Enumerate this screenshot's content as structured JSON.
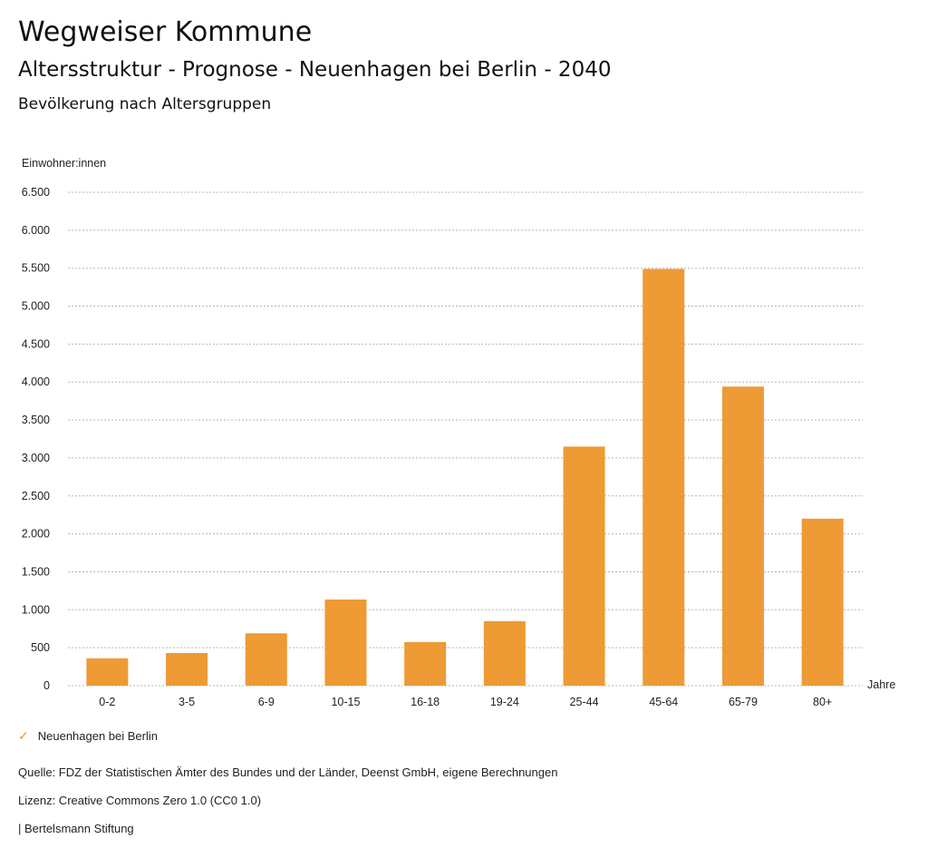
{
  "header": {
    "title": "Wegweiser Kommune",
    "subtitle": "Altersstruktur - Prognose - Neuenhagen bei Berlin - 2040",
    "heading": "Bevölkerung nach Altersgruppen"
  },
  "chart_data": {
    "type": "bar",
    "ylabel": "Einwohner:innen",
    "xlabel": "Jahre",
    "ylim": [
      0,
      6500
    ],
    "yticks": [
      0,
      500,
      1000,
      1500,
      2000,
      2500,
      3000,
      3500,
      4000,
      4500,
      5000,
      5500,
      6000,
      6500
    ],
    "ytick_labels": [
      "0",
      "500",
      "1.000",
      "1.500",
      "2.000",
      "2.500",
      "3.000",
      "3.500",
      "4.000",
      "4.500",
      "5.000",
      "5.500",
      "6.000",
      "6.500"
    ],
    "categories": [
      "0-2",
      "3-5",
      "6-9",
      "10-15",
      "16-18",
      "19-24",
      "25-44",
      "45-64",
      "65-79",
      "80+"
    ],
    "series": [
      {
        "name": "Neuenhagen bei Berlin",
        "color": "#ee9a35",
        "values": [
          360,
          430,
          690,
          1135,
          575,
          850,
          3150,
          5490,
          3940,
          2200
        ]
      }
    ],
    "grid": true,
    "legend": "bottom-left"
  },
  "footer": {
    "source": "Quelle: FDZ der Statistischen Ämter des Bundes und der Länder, Deenst GmbH, eigene Berechnungen",
    "license": "Lizenz: Creative Commons Zero 1.0 (CC0 1.0)",
    "brand": "| Bertelsmann Stiftung"
  }
}
